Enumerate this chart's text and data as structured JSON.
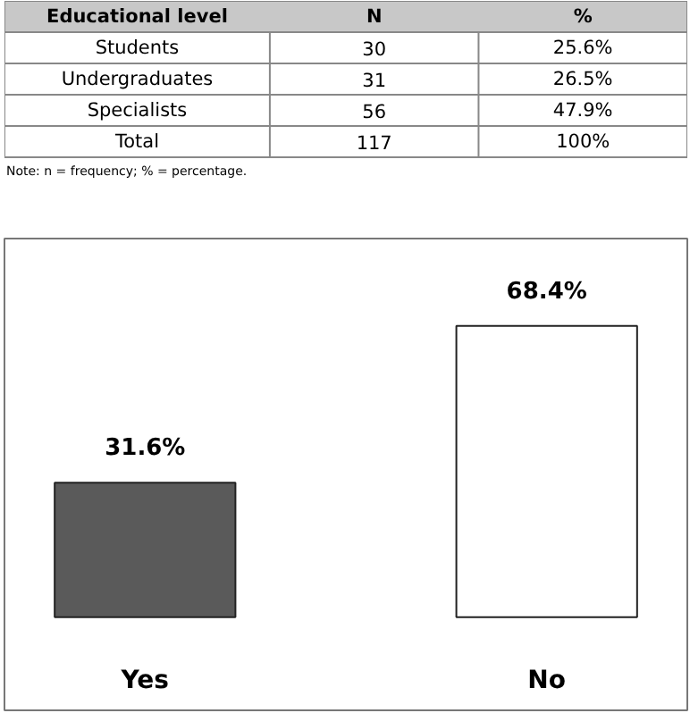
{
  "chart_data": [
    {
      "type": "other",
      "categories": [
        "Educational level",
        "N",
        "%"
      ],
      "y_categories": [
        "Students",
        "Undergraduates",
        "Specialists",
        "Total"
      ],
      "cell_labels": [
        [
          "30",
          "25.6%"
        ],
        [
          "31",
          "26.5%"
        ],
        [
          "56",
          "47.9%"
        ],
        [
          "117",
          "100%"
        ]
      ],
      "annotations": [
        "Note: n = frequency; % = percentage."
      ]
    },
    {
      "type": "bar",
      "categories": [
        "Yes",
        "No"
      ],
      "values": [
        31.6,
        68.4
      ],
      "colors": [
        "#5a5a5a",
        "#ffffff"
      ],
      "value_labels": [
        "31.6%",
        "68.4%"
      ]
    }
  ]
}
